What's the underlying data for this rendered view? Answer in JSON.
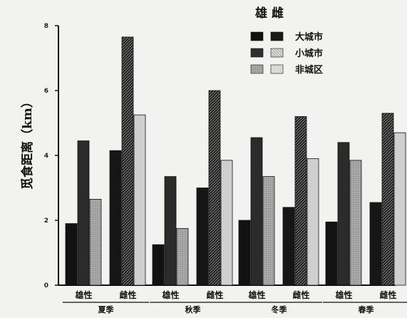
{
  "chart_data": {
    "type": "bar",
    "title": "",
    "ylabel": "觅食距离（km）",
    "xlabel": "",
    "ylim": [
      0,
      8
    ],
    "yticks": [
      0,
      2,
      4,
      6,
      8
    ],
    "grid": false,
    "legend": {
      "title": "雄 雌",
      "placement": "top-right",
      "entries": [
        {
          "label": "大城市",
          "male_color": "#111111",
          "female_color": "#2a2a2a"
        },
        {
          "label": "小城市",
          "male_color": "#333333",
          "female_color": "#bdbdbd"
        },
        {
          "label": "非城区",
          "male_color": "#9a9a9a",
          "female_color": "#d8d8d8"
        }
      ]
    },
    "sexes": [
      "雄性",
      "雌性"
    ],
    "seasons": [
      {
        "name": "夏季",
        "groups": [
          {
            "sex": "雄性",
            "values": {
              "大城市": 1.9,
              "小城市": 4.45,
              "非城区": 2.65
            }
          },
          {
            "sex": "雌性",
            "values": {
              "大城市": 4.15,
              "小城市": 7.65,
              "非城区": 5.25
            }
          }
        ]
      },
      {
        "name": "秋季",
        "groups": [
          {
            "sex": "雄性",
            "values": {
              "大城市": 1.25,
              "小城市": 3.35,
              "非城区": 1.75
            }
          },
          {
            "sex": "雌性",
            "values": {
              "大城市": 3.0,
              "小城市": 6.0,
              "非城区": 3.85
            }
          }
        ]
      },
      {
        "name": "冬季",
        "groups": [
          {
            "sex": "雄性",
            "values": {
              "大城市": 2.0,
              "小城市": 4.55,
              "非城区": 3.35
            }
          },
          {
            "sex": "雌性",
            "values": {
              "大城市": 2.4,
              "小城市": 5.2,
              "非城区": 3.9
            }
          }
        ]
      },
      {
        "name": "春季",
        "groups": [
          {
            "sex": "雄性",
            "values": {
              "大城市": 1.95,
              "小城市": 4.4,
              "非城区": 3.85
            }
          },
          {
            "sex": "雌性",
            "values": {
              "大城市": 2.55,
              "小城市": 5.3,
              "非城区": 4.7
            }
          }
        ]
      }
    ]
  }
}
